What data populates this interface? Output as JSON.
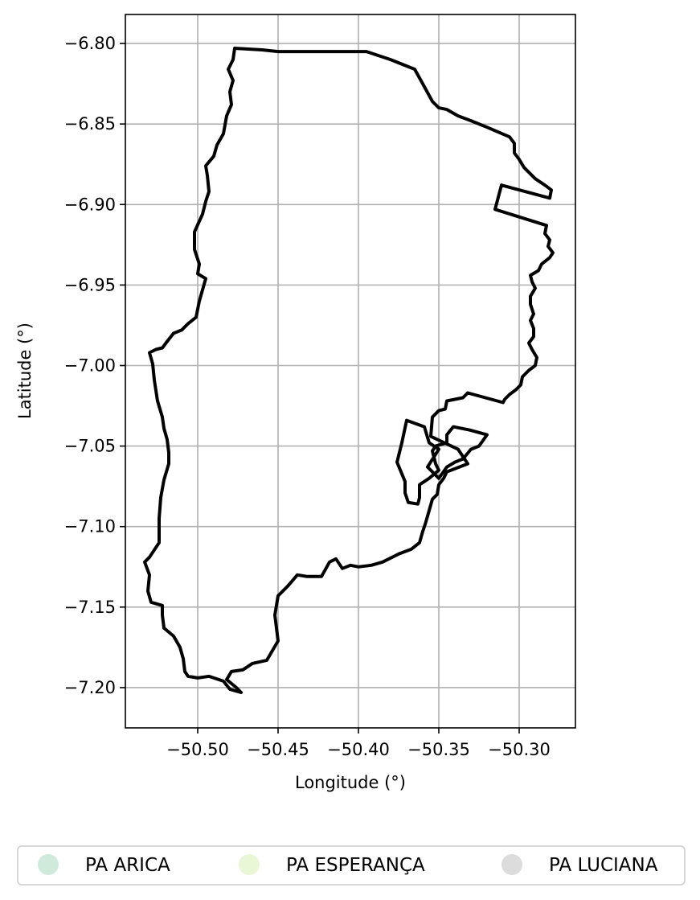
{
  "chart_data": {
    "type": "map",
    "xlabel": "Longitude (°)",
    "ylabel": "Latitude (°)",
    "xlim": [
      -50.545,
      -50.265
    ],
    "ylim": [
      -7.225,
      -6.782
    ],
    "x_ticks": [
      -50.5,
      -50.45,
      -50.4,
      -50.35,
      -50.3
    ],
    "x_tick_labels": [
      "−50.50",
      "−50.45",
      "−50.40",
      "−50.35",
      "−50.30"
    ],
    "y_ticks": [
      -6.8,
      -6.85,
      -6.9,
      -6.95,
      -7.0,
      -7.05,
      -7.1,
      -7.15,
      -7.2
    ],
    "y_tick_labels": [
      "−6.80",
      "−6.85",
      "−6.90",
      "−6.95",
      "−7.00",
      "−7.05",
      "−7.10",
      "−7.15",
      "−7.20"
    ],
    "grid": true,
    "legend_position": "bottom",
    "boundary_color": "#000000",
    "grid_color": "#b0b0b0",
    "boundaries": [
      {
        "points": [
          [
            -50.477,
            -6.803
          ],
          [
            -50.46,
            -6.804
          ],
          [
            -50.45,
            -6.805
          ],
          [
            -50.43,
            -6.805
          ],
          [
            -50.405,
            -6.805
          ],
          [
            -50.395,
            -6.805
          ],
          [
            -50.38,
            -6.81
          ],
          [
            -50.365,
            -6.816
          ],
          [
            -50.36,
            -6.825
          ],
          [
            -50.354,
            -6.836
          ],
          [
            -50.35,
            -6.84
          ],
          [
            -50.345,
            -6.841
          ],
          [
            -50.338,
            -6.845
          ],
          [
            -50.33,
            -6.848
          ],
          [
            -50.32,
            -6.852
          ],
          [
            -50.313,
            -6.855
          ],
          [
            -50.306,
            -6.858
          ],
          [
            -50.303,
            -6.862
          ],
          [
            -50.303,
            -6.868
          ],
          [
            -50.3,
            -6.872
          ],
          [
            -50.297,
            -6.877
          ],
          [
            -50.294,
            -6.88
          ],
          [
            -50.29,
            -6.884
          ],
          [
            -50.284,
            -6.888
          ],
          [
            -50.28,
            -6.891
          ],
          [
            -50.281,
            -6.896
          ],
          [
            -50.311,
            -6.888
          ],
          [
            -50.315,
            -6.903
          ],
          [
            -50.283,
            -6.913
          ],
          [
            -50.284,
            -6.918
          ],
          [
            -50.281,
            -6.922
          ],
          [
            -50.282,
            -6.926
          ],
          [
            -50.279,
            -6.93
          ],
          [
            -50.281,
            -6.933
          ],
          [
            -50.286,
            -6.937
          ],
          [
            -50.288,
            -6.941
          ],
          [
            -50.293,
            -6.944
          ],
          [
            -50.292,
            -6.948
          ],
          [
            -50.29,
            -6.952
          ],
          [
            -50.293,
            -6.957
          ],
          [
            -50.293,
            -6.962
          ],
          [
            -50.291,
            -6.968
          ],
          [
            -50.293,
            -6.972
          ],
          [
            -50.291,
            -6.977
          ],
          [
            -50.291,
            -6.982
          ],
          [
            -50.294,
            -6.986
          ],
          [
            -50.292,
            -6.99
          ],
          [
            -50.289,
            -6.995
          ],
          [
            -50.29,
            -7.0
          ],
          [
            -50.294,
            -7.003
          ],
          [
            -50.298,
            -7.007
          ],
          [
            -50.299,
            -7.012
          ],
          [
            -50.302,
            -7.015
          ],
          [
            -50.306,
            -7.018
          ],
          [
            -50.309,
            -7.021
          ],
          [
            -50.31,
            -7.023
          ],
          [
            -50.332,
            -7.017
          ],
          [
            -50.335,
            -7.02
          ],
          [
            -50.345,
            -7.022
          ],
          [
            -50.346,
            -7.027
          ],
          [
            -50.35,
            -7.028
          ],
          [
            -50.354,
            -7.032
          ],
          [
            -50.355,
            -7.044
          ],
          [
            -50.338,
            -7.052
          ],
          [
            -50.332,
            -7.061
          ],
          [
            -50.345,
            -7.066
          ],
          [
            -50.347,
            -7.07
          ],
          [
            -50.35,
            -7.074
          ],
          [
            -50.351,
            -7.08
          ],
          [
            -50.354,
            -7.083
          ],
          [
            -50.356,
            -7.09
          ],
          [
            -50.358,
            -7.097
          ],
          [
            -50.36,
            -7.103
          ],
          [
            -50.362,
            -7.11
          ],
          [
            -50.367,
            -7.114
          ],
          [
            -50.375,
            -7.117
          ],
          [
            -50.385,
            -7.122
          ],
          [
            -50.392,
            -7.124
          ],
          [
            -50.4,
            -7.125
          ],
          [
            -50.405,
            -7.124
          ],
          [
            -50.41,
            -7.126
          ],
          [
            -50.414,
            -7.12
          ],
          [
            -50.418,
            -7.122
          ],
          [
            -50.423,
            -7.131
          ],
          [
            -50.432,
            -7.131
          ],
          [
            -50.438,
            -7.13
          ],
          [
            -50.444,
            -7.137
          ],
          [
            -50.45,
            -7.143
          ],
          [
            -50.452,
            -7.155
          ],
          [
            -50.45,
            -7.171
          ],
          [
            -50.457,
            -7.183
          ],
          [
            -50.466,
            -7.185
          ],
          [
            -50.472,
            -7.189
          ],
          [
            -50.479,
            -7.19
          ],
          [
            -50.482,
            -7.195
          ],
          [
            -50.476,
            -7.2
          ],
          [
            -50.473,
            -7.203
          ],
          [
            -50.48,
            -7.201
          ],
          [
            -50.484,
            -7.196
          ],
          [
            -50.493,
            -7.193
          ],
          [
            -50.5,
            -7.194
          ],
          [
            -50.506,
            -7.193
          ],
          [
            -50.508,
            -7.19
          ],
          [
            -50.509,
            -7.182
          ],
          [
            -50.511,
            -7.175
          ],
          [
            -50.515,
            -7.168
          ],
          [
            -50.521,
            -7.163
          ],
          [
            -50.522,
            -7.155
          ],
          [
            -50.522,
            -7.149
          ],
          [
            -50.529,
            -7.147
          ],
          [
            -50.531,
            -7.14
          ],
          [
            -50.53,
            -7.13
          ],
          [
            -50.533,
            -7.122
          ],
          [
            -50.53,
            -7.119
          ],
          [
            -50.524,
            -7.11
          ],
          [
            -50.524,
            -7.095
          ],
          [
            -50.523,
            -7.082
          ],
          [
            -50.521,
            -7.071
          ],
          [
            -50.518,
            -7.061
          ],
          [
            -50.518,
            -7.054
          ],
          [
            -50.519,
            -7.046
          ],
          [
            -50.521,
            -7.039
          ],
          [
            -50.522,
            -7.032
          ],
          [
            -50.525,
            -7.022
          ],
          [
            -50.527,
            -7.009
          ],
          [
            -50.528,
            -6.999
          ],
          [
            -50.53,
            -6.992
          ],
          [
            -50.526,
            -6.99
          ],
          [
            -50.522,
            -6.989
          ],
          [
            -50.519,
            -6.985
          ],
          [
            -50.515,
            -6.98
          ],
          [
            -50.51,
            -6.978
          ],
          [
            -50.506,
            -6.974
          ],
          [
            -50.501,
            -6.97
          ],
          [
            -50.499,
            -6.96
          ],
          [
            -50.495,
            -6.946
          ],
          [
            -50.5,
            -6.943
          ],
          [
            -50.499,
            -6.937
          ],
          [
            -50.502,
            -6.928
          ],
          [
            -50.502,
            -6.917
          ],
          [
            -50.497,
            -6.906
          ],
          [
            -50.495,
            -6.898
          ],
          [
            -50.493,
            -6.892
          ],
          [
            -50.494,
            -6.882
          ],
          [
            -50.495,
            -6.876
          ],
          [
            -50.49,
            -6.87
          ],
          [
            -50.488,
            -6.863
          ],
          [
            -50.484,
            -6.856
          ],
          [
            -50.482,
            -6.845
          ],
          [
            -50.479,
            -6.838
          ],
          [
            -50.48,
            -6.83
          ],
          [
            -50.478,
            -6.823
          ],
          [
            -50.481,
            -6.816
          ],
          [
            -50.478,
            -6.81
          ],
          [
            -50.477,
            -6.803
          ]
        ]
      },
      {
        "points": [
          [
            -50.37,
            -7.034
          ],
          [
            -50.359,
            -7.038
          ],
          [
            -50.356,
            -7.048
          ],
          [
            -50.35,
            -7.052
          ],
          [
            -50.357,
            -7.063
          ],
          [
            -50.35,
            -7.07
          ],
          [
            -50.345,
            -7.063
          ],
          [
            -50.34,
            -7.06
          ],
          [
            -50.335,
            -7.058
          ],
          [
            -50.33,
            -7.052
          ],
          [
            -50.325,
            -7.05
          ],
          [
            -50.32,
            -7.043
          ],
          [
            -50.331,
            -7.04
          ],
          [
            -50.341,
            -7.038
          ],
          [
            -50.345,
            -7.043
          ],
          [
            -50.345,
            -7.048
          ],
          [
            -50.352,
            -7.05
          ],
          [
            -50.354,
            -7.053
          ],
          [
            -50.352,
            -7.061
          ],
          [
            -50.35,
            -7.065
          ],
          [
            -50.356,
            -7.07
          ],
          [
            -50.362,
            -7.074
          ],
          [
            -50.362,
            -7.082
          ],
          [
            -50.363,
            -7.086
          ],
          [
            -50.369,
            -7.085
          ],
          [
            -50.371,
            -7.079
          ],
          [
            -50.371,
            -7.072
          ],
          [
            -50.376,
            -7.06
          ],
          [
            -50.373,
            -7.048
          ],
          [
            -50.37,
            -7.034
          ]
        ]
      }
    ],
    "legend": [
      {
        "label": "PA ARICA",
        "color": "#cfeadb"
      },
      {
        "label": "PA ESPERANÇA",
        "color": "#eaf7d6"
      },
      {
        "label": "PA LUCIANA",
        "color": "#dcdcdc"
      }
    ]
  }
}
